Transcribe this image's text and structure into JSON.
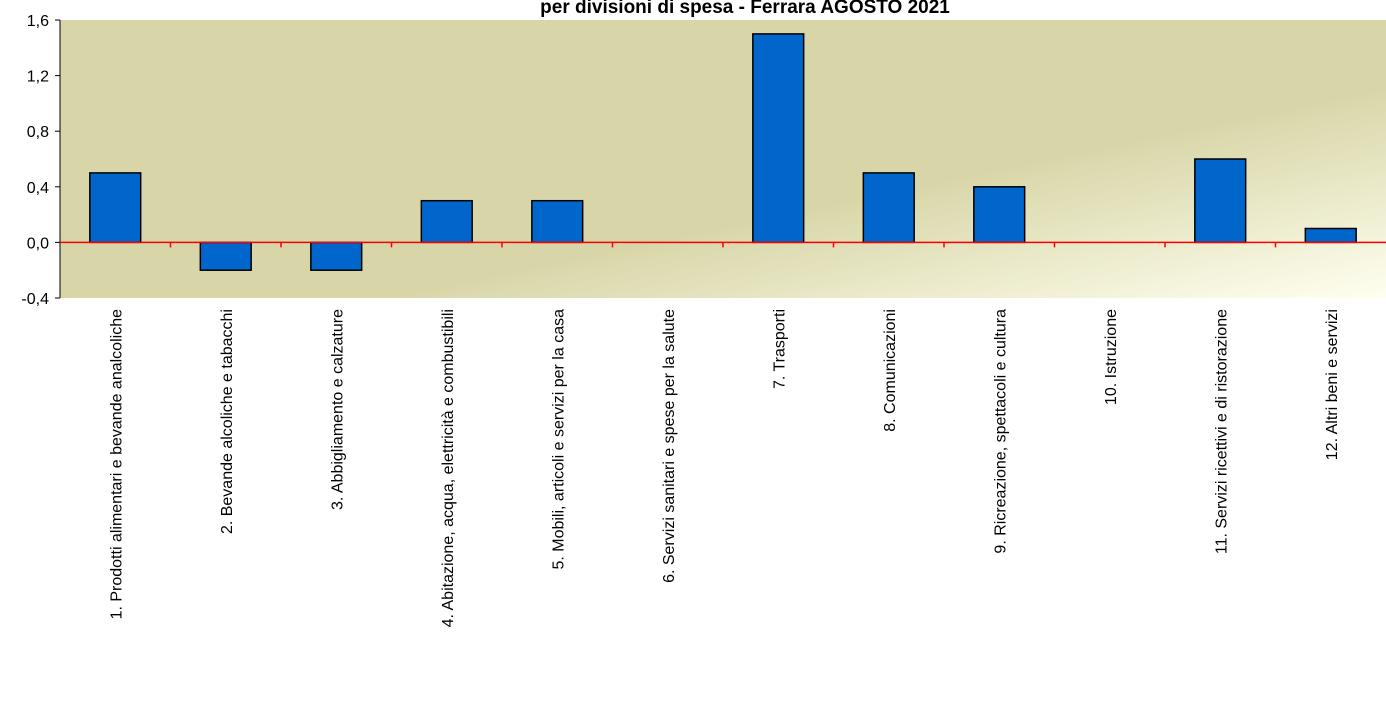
{
  "chart_data": {
    "type": "bar",
    "title": "per divisioni  di spesa - Ferrara AGOSTO 2021",
    "categories": [
      "1. Prodotti alimentari e bevande analcoliche",
      "2. Bevande alcoliche e tabacchi",
      "3. Abbigliamento e calzature",
      "4. Abitazione, acqua, elettricità e combustibili",
      "5. Mobili, articoli e servizi per la casa",
      "6. Servizi sanitari e spese per la salute",
      "7. Trasporti",
      "8. Comunicazioni",
      "9. Ricreazione, spettacoli e cultura",
      "10. Istruzione",
      "11. Servizi ricettivi e di ristorazione",
      "12. Altri beni e servizi"
    ],
    "values": [
      0.5,
      -0.2,
      -0.2,
      0.3,
      0.3,
      0.0,
      1.5,
      0.5,
      0.4,
      0.0,
      0.6,
      0.1
    ],
    "ylim": [
      -0.4,
      1.6
    ],
    "yticks": [
      "-0,4",
      "0,0",
      "0,4",
      "0,8",
      "1,2",
      "1,6"
    ],
    "ytick_values": [
      -0.4,
      0.0,
      0.4,
      0.8,
      1.2,
      1.6
    ],
    "xlabel": "",
    "ylabel": "",
    "legend": "none",
    "grid": false,
    "colors": {
      "bar": "#0066CC",
      "bar_stroke": "#000000",
      "zero_line": "#FF0000",
      "plot_bg": "#D8D6A8",
      "plot_bg_highlight": "#FFFFF0"
    }
  }
}
